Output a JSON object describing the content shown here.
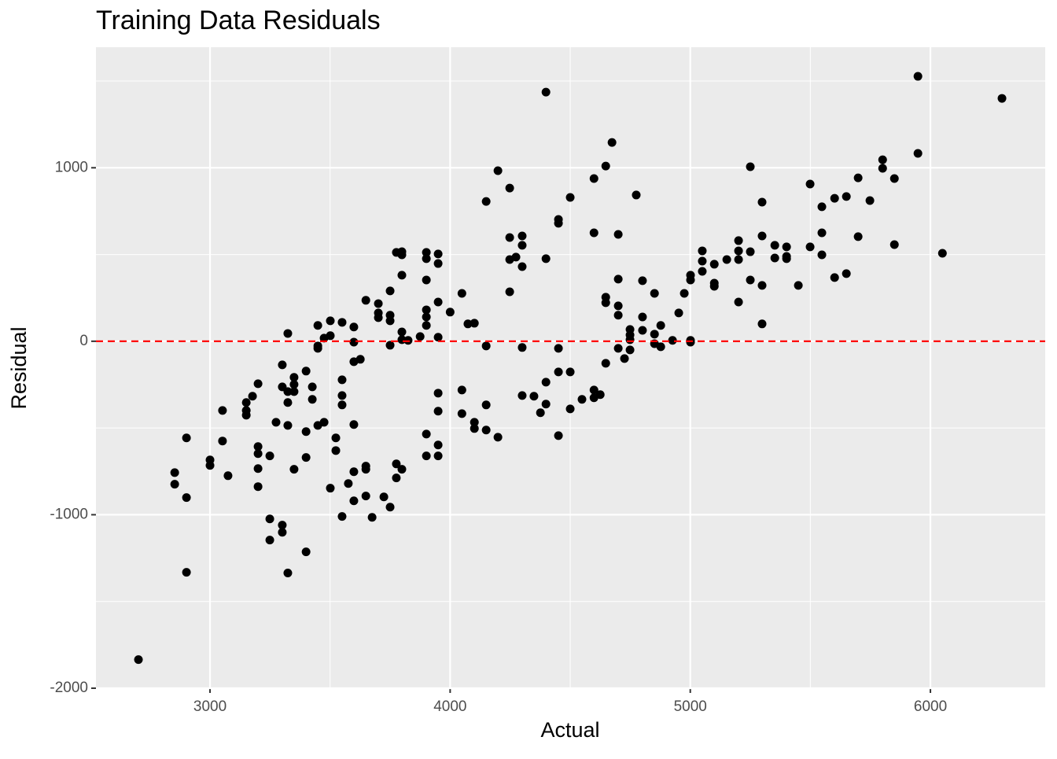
{
  "chart_data": {
    "type": "scatter",
    "title": "Training Data Residuals",
    "x_label": "Actual",
    "y_label": "Residual",
    "x": [
      2702,
      2853,
      2853,
      2902,
      2902,
      2902,
      3000,
      3000,
      3052,
      3052,
      3075,
      3151,
      3151,
      3151,
      3177,
      3200,
      3200,
      3200,
      3200,
      3200,
      3249,
      3249,
      3249,
      3275,
      3301,
      3301,
      3301,
      3301,
      3324,
      3324,
      3324,
      3324,
      3324,
      3350,
      3350,
      3350,
      3350,
      3400,
      3400,
      3400,
      3400,
      3426,
      3426,
      3449,
      3449,
      3449,
      3449,
      3475,
      3475,
      3501,
      3501,
      3501,
      3524,
      3524,
      3550,
      3550,
      3550,
      3550,
      3550,
      3576,
      3599,
      3599,
      3599,
      3599,
      3599,
      3599,
      3626,
      3649,
      3649,
      3649,
      3649,
      3675,
      3701,
      3701,
      3701,
      3724,
      3750,
      3750,
      3750,
      3750,
      3750,
      3776,
      3776,
      3776,
      3799,
      3799,
      3799,
      3799,
      3799,
      3799,
      3825,
      3875,
      3901,
      3901,
      3901,
      3901,
      3901,
      3901,
      3901,
      3901,
      3950,
      3950,
      3950,
      3950,
      3950,
      3950,
      3950,
      3950,
      4000,
      4049,
      4049,
      4049,
      4074,
      4101,
      4101,
      4101,
      4150,
      4150,
      4150,
      4150,
      4199,
      4199,
      4248,
      4248,
      4248,
      4248,
      4274,
      4300,
      4300,
      4300,
      4300,
      4300,
      4349,
      4376,
      4399,
      4399,
      4399,
      4399,
      4451,
      4451,
      4451,
      4451,
      4451,
      4500,
      4500,
      4500,
      4549,
      4599,
      4599,
      4599,
      4599,
      4625,
      4648,
      4648,
      4648,
      4648,
      4674,
      4700,
      4700,
      4700,
      4700,
      4700,
      4726,
      4749,
      4749,
      4749,
      4749,
      4775,
      4801,
      4801,
      4801,
      4851,
      4851,
      4851,
      4877,
      4877,
      4926,
      4952,
      4975,
      5001,
      5001,
      5001,
      5001,
      5050,
      5050,
      5050,
      5100,
      5100,
      5100,
      5152,
      5201,
      5201,
      5201,
      5201,
      5250,
      5250,
      5250,
      5299,
      5299,
      5299,
      5299,
      5352,
      5352,
      5401,
      5401,
      5401,
      5450,
      5499,
      5499,
      5548,
      5548,
      5548,
      5601,
      5601,
      5650,
      5650,
      5699,
      5699,
      5748,
      5801,
      5801,
      5850,
      5850,
      5948,
      5948,
      6050,
      6298
    ],
    "values": [
      -1835,
      -757,
      -824,
      -557,
      -901,
      -1332,
      -684,
      -716,
      -399,
      -575,
      -775,
      -353,
      -399,
      -426,
      -317,
      -245,
      -607,
      -648,
      -734,
      -838,
      -661,
      -1024,
      -1146,
      -467,
      -136,
      -263,
      -1060,
      -1101,
      45,
      -290,
      -353,
      -485,
      -1336,
      -208,
      -249,
      -290,
      -738,
      -172,
      -521,
      -670,
      -1214,
      -263,
      -335,
      91,
      -27,
      -41,
      -485,
      -467,
      18,
      118,
      32,
      -847,
      -557,
      -630,
      109,
      -222,
      -313,
      -367,
      -1010,
      -820,
      82,
      -5,
      -118,
      -480,
      -752,
      -920,
      -104,
      236,
      -720,
      -738,
      -892,
      -1015,
      217,
      163,
      136,
      -897,
      290,
      150,
      118,
      -23,
      -956,
      512,
      -707,
      -788,
      516,
      498,
      381,
      54,
      9,
      -738,
      5,
      27,
      512,
      476,
      353,
      181,
      140,
      91,
      -535,
      -661,
      503,
      448,
      226,
      23,
      -299,
      -403,
      -598,
      -661,
      168,
      276,
      -281,
      -417,
      100,
      104,
      -467,
      -503,
      806,
      -27,
      -367,
      -512,
      983,
      -553,
      883,
      598,
      471,
      285,
      485,
      607,
      553,
      430,
      -36,
      -313,
      -317,
      -412,
      1436,
      476,
      -236,
      -362,
      702,
      680,
      -41,
      -177,
      -544,
      829,
      -177,
      -390,
      -335,
      938,
      625,
      -281,
      -326,
      -308,
      1010,
      254,
      222,
      -127,
      1146,
      616,
      358,
      204,
      150,
      -41,
      -100,
      68,
      36,
      9,
      -50,
      843,
      349,
      140,
      63,
      276,
      41,
      -14,
      91,
      -32,
      5,
      163,
      276,
      381,
      353,
      5,
      -5,
      521,
      462,
      403,
      444,
      335,
      317,
      471,
      580,
      521,
      471,
      226,
      1006,
      516,
      353,
      802,
      607,
      322,
      100,
      553,
      480,
      544,
      489,
      476,
      322,
      906,
      544,
      775,
      625,
      498,
      824,
      367,
      834,
      390,
      942,
      603,
      811,
      1046,
      997,
      938,
      557,
      1527,
      1083,
      507,
      1400
    ],
    "color": "#000000",
    "xlim": [
      2525,
      6478
    ],
    "ylim": [
      -2000,
      1695
    ],
    "xticks": [
      3000,
      4000,
      5000,
      6000
    ],
    "yticks": [
      -2000,
      -1000,
      0,
      1000
    ],
    "grid": true,
    "hline": {
      "value": 0,
      "color": "#ff0000"
    }
  }
}
